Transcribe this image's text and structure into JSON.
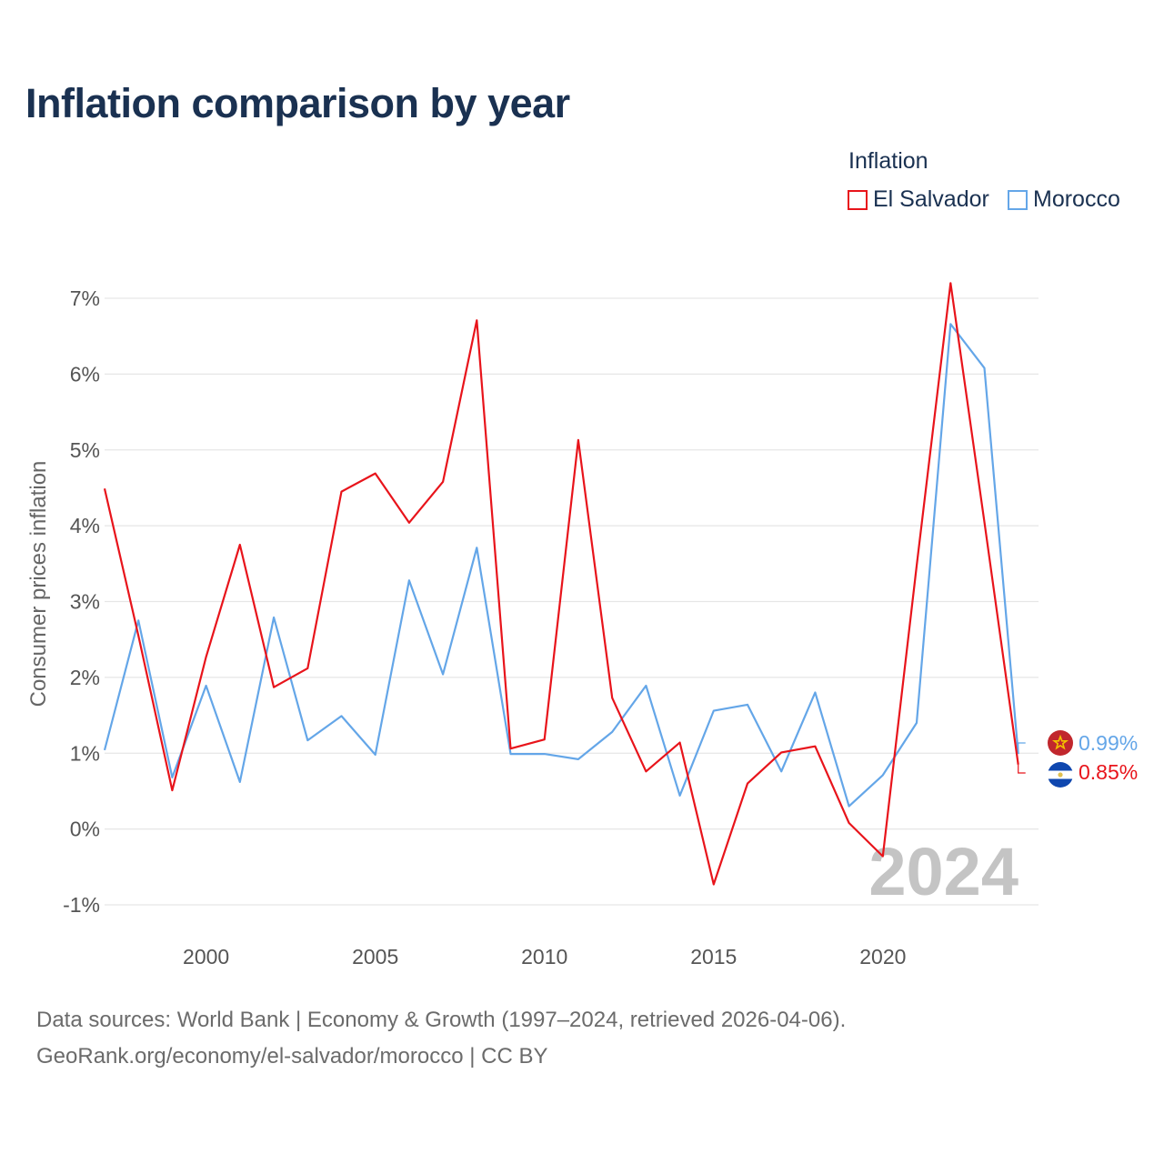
{
  "title": "Inflation comparison by year",
  "legend": {
    "title": "Inflation",
    "items": [
      {
        "label": "El Salvador",
        "color": "#e8141b"
      },
      {
        "label": "Morocco",
        "color": "#64a6e8"
      }
    ]
  },
  "source": {
    "line1": "Data sources: World Bank | Economy & Growth (1997–2024, retrieved 2026-04-06).",
    "line2": "GeoRank.org/economy/el-salvador/morocco | CC BY"
  },
  "chart_data": {
    "type": "line",
    "title": "Inflation comparison by year",
    "xlabel": "",
    "ylabel": "Consumer prices inflation",
    "year_watermark": "2024",
    "xlim": [
      1997,
      2024
    ],
    "ylim": [
      -1,
      7
    ],
    "x_ticks": [
      2000,
      2005,
      2010,
      2015,
      2020
    ],
    "y_ticks": [
      -1,
      0,
      1,
      2,
      3,
      4,
      5,
      6,
      7
    ],
    "y_tick_labels": [
      "-1%",
      "0%",
      "1%",
      "2%",
      "3%",
      "4%",
      "5%",
      "6%",
      "7%"
    ],
    "x": [
      1997,
      1998,
      1999,
      2000,
      2001,
      2002,
      2003,
      2004,
      2005,
      2006,
      2007,
      2008,
      2009,
      2010,
      2011,
      2012,
      2013,
      2014,
      2015,
      2016,
      2017,
      2018,
      2019,
      2020,
      2021,
      2022,
      2023,
      2024
    ],
    "series": [
      {
        "name": "El Salvador",
        "color": "#e8141b",
        "end_label": "0.85%",
        "values": [
          4.49,
          2.55,
          0.51,
          2.27,
          3.75,
          1.87,
          2.12,
          4.45,
          4.69,
          4.04,
          4.58,
          6.71,
          1.06,
          1.18,
          5.13,
          1.73,
          0.76,
          1.14,
          -0.73,
          0.6,
          1.01,
          1.09,
          0.08,
          -0.36,
          3.47,
          7.2,
          4.05,
          0.85
        ]
      },
      {
        "name": "Morocco",
        "color": "#64a6e8",
        "end_label": "0.99%",
        "values": [
          1.04,
          2.75,
          0.68,
          1.89,
          0.62,
          2.79,
          1.17,
          1.49,
          0.98,
          3.28,
          2.04,
          3.71,
          0.99,
          0.99,
          0.92,
          1.28,
          1.89,
          0.44,
          1.56,
          1.64,
          0.76,
          1.8,
          0.3,
          0.71,
          1.4,
          6.66,
          6.08,
          0.99
        ]
      }
    ]
  }
}
